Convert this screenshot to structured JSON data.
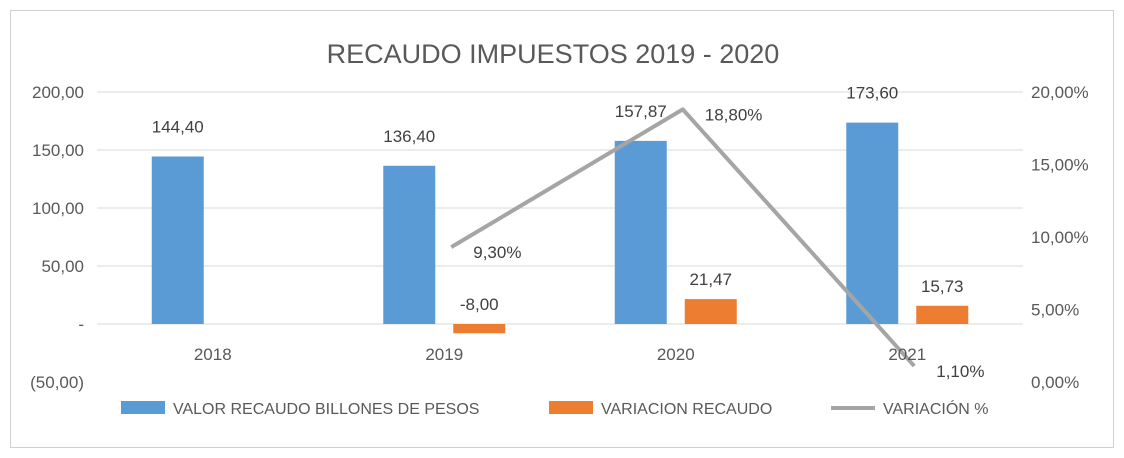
{
  "chart_data": {
    "type": "bar",
    "title": "RECAUDO IMPUESTOS 2019 - 2020",
    "categories": [
      "2018",
      "2019",
      "2020",
      "2021"
    ],
    "y_left": {
      "ticks": [
        200,
        150,
        100,
        50,
        0,
        -50
      ],
      "tick_labels": [
        "200,00",
        "150,00",
        "100,00",
        "50,00",
        "-",
        "(50,00)"
      ],
      "ylim": [
        -50,
        200
      ]
    },
    "y_right": {
      "ticks": [
        0.2,
        0.15,
        0.1,
        0.05,
        0.0
      ],
      "tick_labels": [
        "20,00%",
        "15,00%",
        "10,00%",
        "5,00%",
        "0,00%"
      ],
      "ylim": [
        0,
        0.2
      ]
    },
    "series": [
      {
        "name": "VALOR RECAUDO BILLONES DE PESOS",
        "kind": "bar",
        "axis": "left",
        "color": "#5b9bd5",
        "values": [
          144.4,
          136.4,
          157.87,
          173.6
        ],
        "labels": [
          "144,40",
          "136,40",
          "157,87",
          "173,60"
        ]
      },
      {
        "name": "VARIACION RECAUDO",
        "kind": "bar",
        "axis": "left",
        "color": "#ed7d31",
        "values": [
          null,
          -8.0,
          21.47,
          15.73
        ],
        "labels": [
          "",
          "-8,00",
          "21,47",
          "15,73"
        ]
      },
      {
        "name": "VARIACIÓN %",
        "kind": "line",
        "axis": "right",
        "color": "#a5a5a5",
        "values": [
          null,
          0.093,
          0.188,
          0.011
        ],
        "labels": [
          "",
          "9,30%",
          "18,80%",
          "1,10%"
        ]
      }
    ],
    "grid": true,
    "legend": "bottom"
  }
}
